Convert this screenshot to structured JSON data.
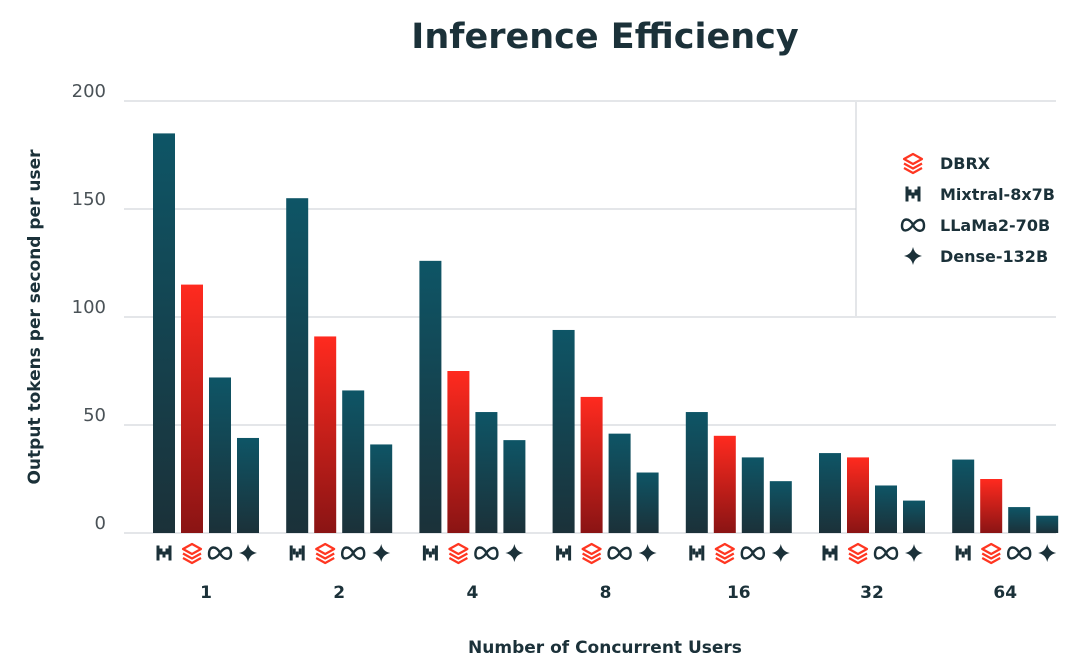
{
  "colors": {
    "DBRX": "#ff3621",
    "Mixtral-8x7B": "#0e4f61",
    "LLaMa2-70B": "#0e4f61",
    "Dense-132B": "#0e4f61",
    "dark": "#1b3139",
    "grid": "#c9ced3"
  },
  "chart_data": {
    "type": "bar",
    "title": "Inference Efficiency",
    "xlabel": "Number of Concurrent Users",
    "ylabel": "Output tokens per second per user",
    "categories": [
      "1",
      "2",
      "4",
      "8",
      "16",
      "32",
      "64"
    ],
    "ylim": [
      0,
      200
    ],
    "yticks": [
      "0",
      "50",
      "100",
      "150",
      "200"
    ],
    "grid": true,
    "legend_position": "top-right",
    "series": [
      {
        "name": "Mixtral-8x7B",
        "icon": "mistral-icon",
        "values": [
          185,
          155,
          126,
          94,
          56,
          37,
          34
        ]
      },
      {
        "name": "DBRX",
        "icon": "databricks-icon",
        "values": [
          115,
          91,
          75,
          63,
          45,
          35,
          25
        ]
      },
      {
        "name": "LLaMa2-70B",
        "icon": "meta-icon",
        "values": [
          72,
          66,
          56,
          46,
          35,
          22,
          12
        ]
      },
      {
        "name": "Dense-132B",
        "icon": "sparkle-icon",
        "values": [
          44,
          41,
          43,
          28,
          24,
          15,
          8
        ]
      }
    ],
    "legend": [
      {
        "label": "DBRX",
        "icon": "databricks-icon"
      },
      {
        "label": "Mixtral-8x7B",
        "icon": "mistral-icon"
      },
      {
        "label": "LLaMa2-70B",
        "icon": "meta-icon"
      },
      {
        "label": "Dense-132B",
        "icon": "sparkle-icon"
      }
    ]
  }
}
